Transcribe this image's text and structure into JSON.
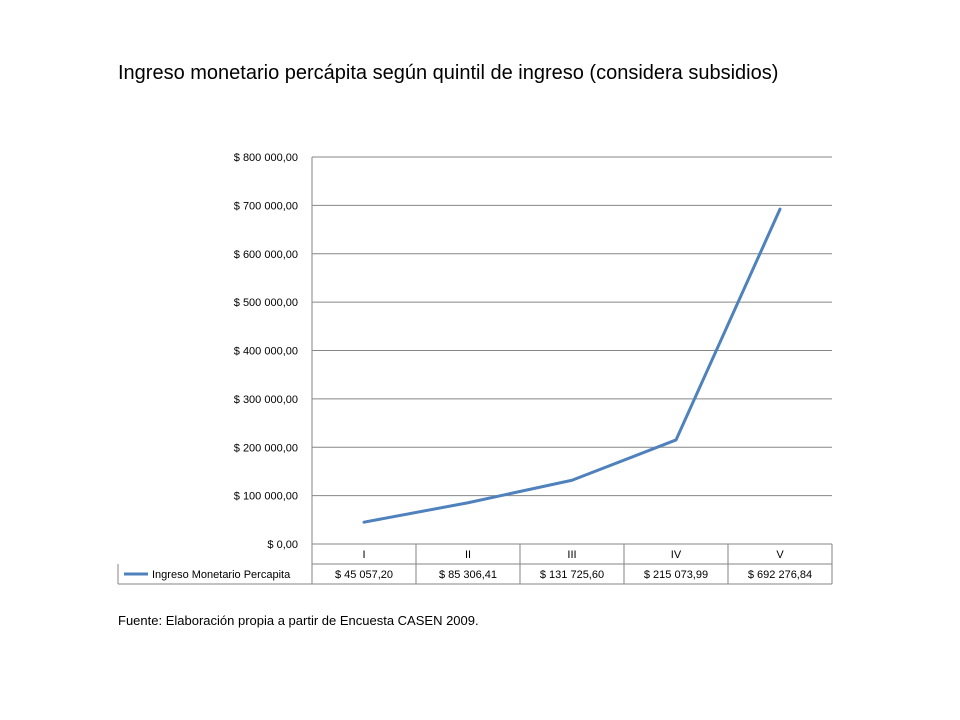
{
  "title": "Ingreso monetario percápita según quintil de ingreso (considera subsidios)",
  "source_note": "Fuente: Elaboración propia a partir de Encuesta CASEN 2009.",
  "chart_data": {
    "type": "line",
    "title": "Ingreso monetario percápita según quintil de ingreso (considera subsidios)",
    "categories": [
      "I",
      "II",
      "III",
      "IV",
      "V"
    ],
    "series": [
      {
        "name": "Ingreso Monetario Percapita",
        "values": [
          45057.2,
          85306.41,
          131725.6,
          215073.99,
          692276.84
        ],
        "labels": [
          "$ 45 057,20",
          "$ 85 306,41",
          "$ 131 725,60",
          "$ 215 073,99",
          "$ 692 276,84"
        ],
        "color": "#4f81bd"
      }
    ],
    "y_ticks": [
      0,
      100000,
      200000,
      300000,
      400000,
      500000,
      600000,
      700000,
      800000
    ],
    "y_tick_labels": [
      "$ 0,00",
      "$ 100 000,00",
      "$ 200 000,00",
      "$ 300 000,00",
      "$ 400 000,00",
      "$ 500 000,00",
      "$ 600 000,00",
      "$ 700 000,00",
      "$ 800 000,00"
    ],
    "ylim": [
      0,
      800000
    ],
    "xlabel": "",
    "ylabel": "",
    "grid": true,
    "legend": "data-table-bottom",
    "grid_color": "#868686"
  }
}
